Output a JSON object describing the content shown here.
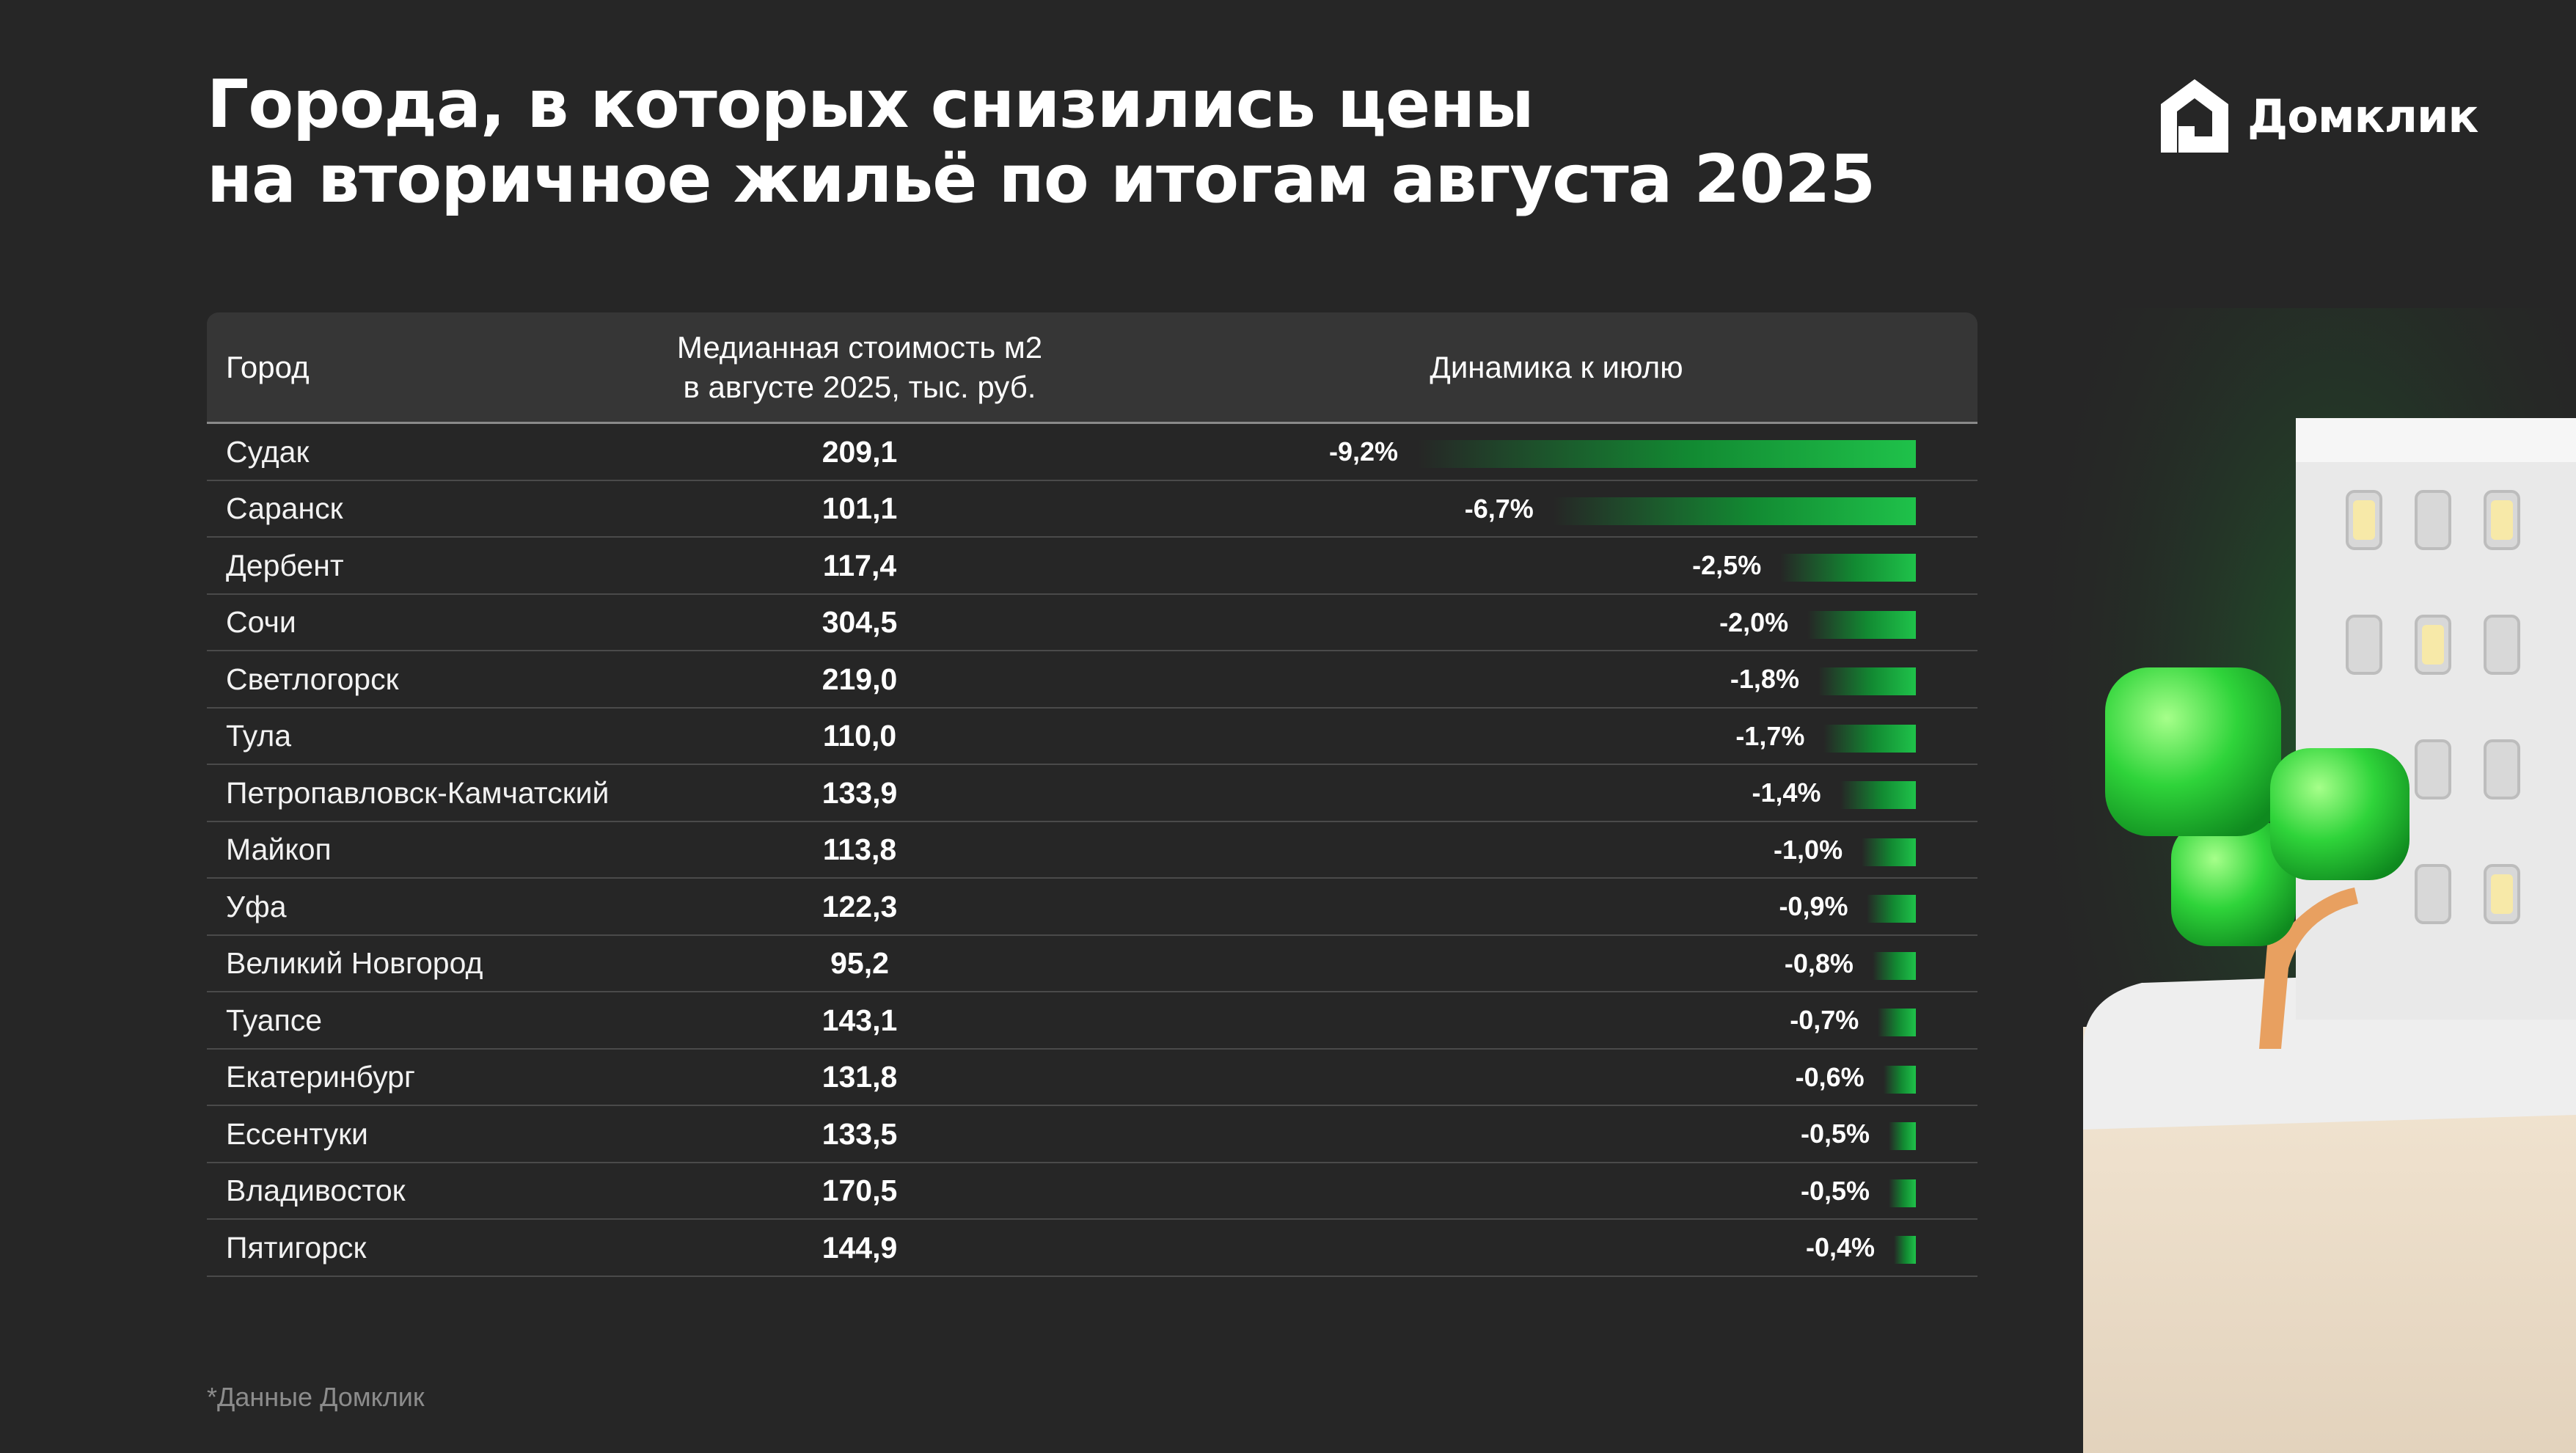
{
  "title": {
    "line1": "Города, в которых снизились цены",
    "line2": "на вторичное жильё по итогам августа 2025"
  },
  "brand": {
    "name": "Домклик",
    "color": "#ffffff"
  },
  "accent_color": "#1fc24a",
  "chart_data": {
    "type": "table",
    "columns": [
      "Город",
      "Медианная стоимость м2 в августе 2025, тыс. руб.",
      "Динамика к июлю"
    ],
    "header": {
      "city": "Город",
      "price_line1": "Медианная стоимость м2",
      "price_line2": "в августе 2025, тыс. руб.",
      "change": "Динамика к июлю"
    },
    "rows": [
      {
        "city": "Судак",
        "price": "209,1",
        "change_label": "-9,2%",
        "change": -9.2
      },
      {
        "city": "Саранск",
        "price": "101,1",
        "change_label": "-6,7%",
        "change": -6.7
      },
      {
        "city": "Дербент",
        "price": "117,4",
        "change_label": "-2,5%",
        "change": -2.5
      },
      {
        "city": "Сочи",
        "price": "304,5",
        "change_label": "-2,0%",
        "change": -2.0
      },
      {
        "city": "Светлогорск",
        "price": "219,0",
        "change_label": "-1,8%",
        "change": -1.8
      },
      {
        "city": "Тула",
        "price": "110,0",
        "change_label": "-1,7%",
        "change": -1.7
      },
      {
        "city": "Петропавловск-Камчатский",
        "price": "133,9",
        "change_label": "-1,4%",
        "change": -1.4
      },
      {
        "city": "Майкоп",
        "price": "113,8",
        "change_label": "-1,0%",
        "change": -1.0
      },
      {
        "city": "Уфа",
        "price": "122,3",
        "change_label": "-0,9%",
        "change": -0.9
      },
      {
        "city": "Великий Новгород",
        "price": "95,2",
        "change_label": "-0,8%",
        "change": -0.8
      },
      {
        "city": "Туапсе",
        "price": "143,1",
        "change_label": "-0,7%",
        "change": -0.7
      },
      {
        "city": "Екатеринбург",
        "price": "131,8",
        "change_label": "-0,6%",
        "change": -0.6
      },
      {
        "city": "Ессентуки",
        "price": "133,5",
        "change_label": "-0,5%",
        "change": -0.5
      },
      {
        "city": "Владивосток",
        "price": "170,5",
        "change_label": "-0,5%",
        "change": -0.5
      },
      {
        "city": "Пятигорск",
        "price": "144,9",
        "change_label": "-0,4%",
        "change": -0.4
      }
    ]
  },
  "footnote": "*Данные Домклик"
}
